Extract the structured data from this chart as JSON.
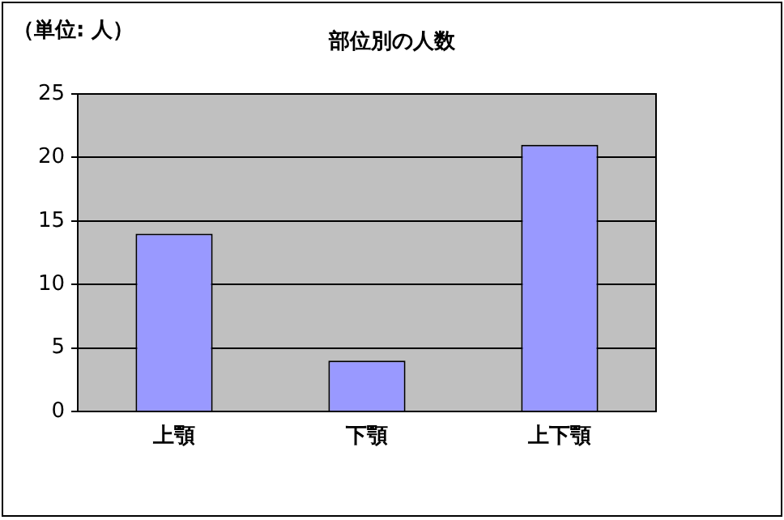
{
  "chart_data": {
    "type": "bar",
    "title": "部位別の人数",
    "annotations": [
      "（単位: 人）"
    ],
    "categories": [
      "上顎",
      "下顎",
      "上下顎"
    ],
    "values": [
      14,
      4,
      21
    ],
    "color": "#9999ff",
    "ylim": [
      0,
      25
    ],
    "yticks": [
      0,
      5,
      10,
      15,
      20,
      25
    ],
    "grid": "y",
    "legend": false
  }
}
